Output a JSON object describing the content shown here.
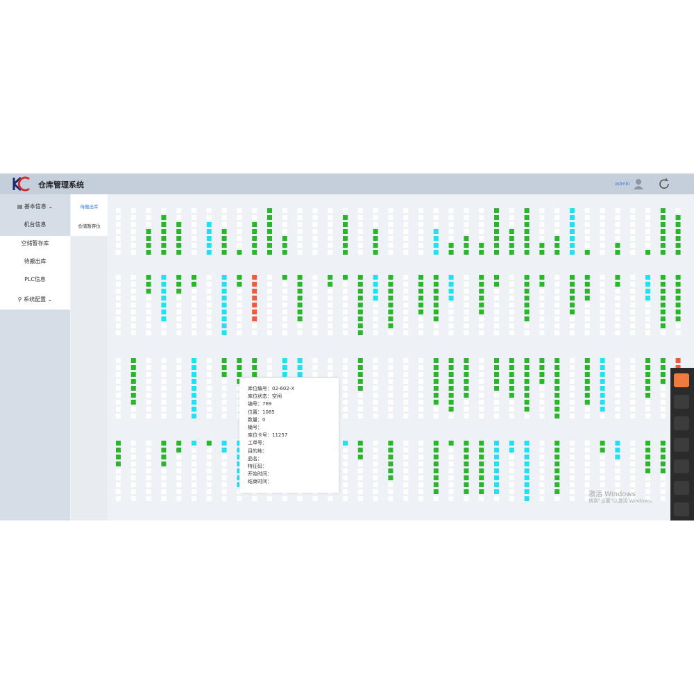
{
  "header": {
    "title": "仓库管理系统",
    "user": "admin"
  },
  "sidebar": {
    "menu": [
      {
        "label": "基本信息",
        "children": [
          "机台信息",
          "空储暂存库",
          "待搬出库",
          "PLC信息"
        ]
      },
      {
        "label": "系统配置"
      }
    ]
  },
  "tabs": [
    "待搬出库",
    "仓储暂存位"
  ],
  "tooltip": {
    "lines": [
      "库位编号：02-602-X",
      "库位状态：空闲",
      "编号：769",
      "位置：1085",
      "数量：0",
      "桶号：",
      "库位卡号：11257",
      "工单号：",
      "目的地：",
      "品名：",
      "特征码：",
      "开始时间：",
      "结束时间："
    ]
  },
  "watermark": {
    "title": "激活 Windows",
    "text": "转到“设置”以激活 Windows。"
  }
}
